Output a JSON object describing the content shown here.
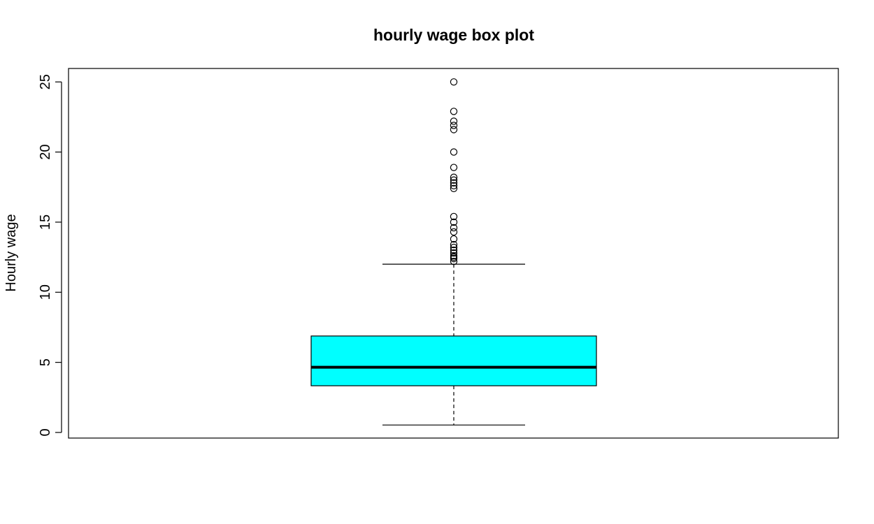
{
  "chart_data": {
    "type": "box",
    "title": "hourly wage box plot",
    "xlabel": "",
    "ylabel": "Hourly wage",
    "ylim": [
      -0.4,
      25.96
    ],
    "yticks": [
      0,
      5,
      10,
      15,
      20,
      25
    ],
    "ytick_labels": [
      "0",
      "5",
      "10",
      "15",
      "20",
      "25"
    ],
    "grid": false,
    "legend": "none",
    "box": {
      "lower_whisker": 0.53,
      "q1": 3.33,
      "median": 4.65,
      "q3": 6.88,
      "upper_whisker": 12.0
    },
    "outliers": [
      12.2,
      12.4,
      12.5,
      12.6,
      12.8,
      13.0,
      13.2,
      13.4,
      13.8,
      14.3,
      14.6,
      15.0,
      15.4,
      17.4,
      17.6,
      17.8,
      18.0,
      18.2,
      18.9,
      20.0,
      21.6,
      21.9,
      22.2,
      22.9,
      25.0
    ],
    "colors": {
      "box_fill": "#00ffff",
      "stroke": "#000000"
    }
  }
}
